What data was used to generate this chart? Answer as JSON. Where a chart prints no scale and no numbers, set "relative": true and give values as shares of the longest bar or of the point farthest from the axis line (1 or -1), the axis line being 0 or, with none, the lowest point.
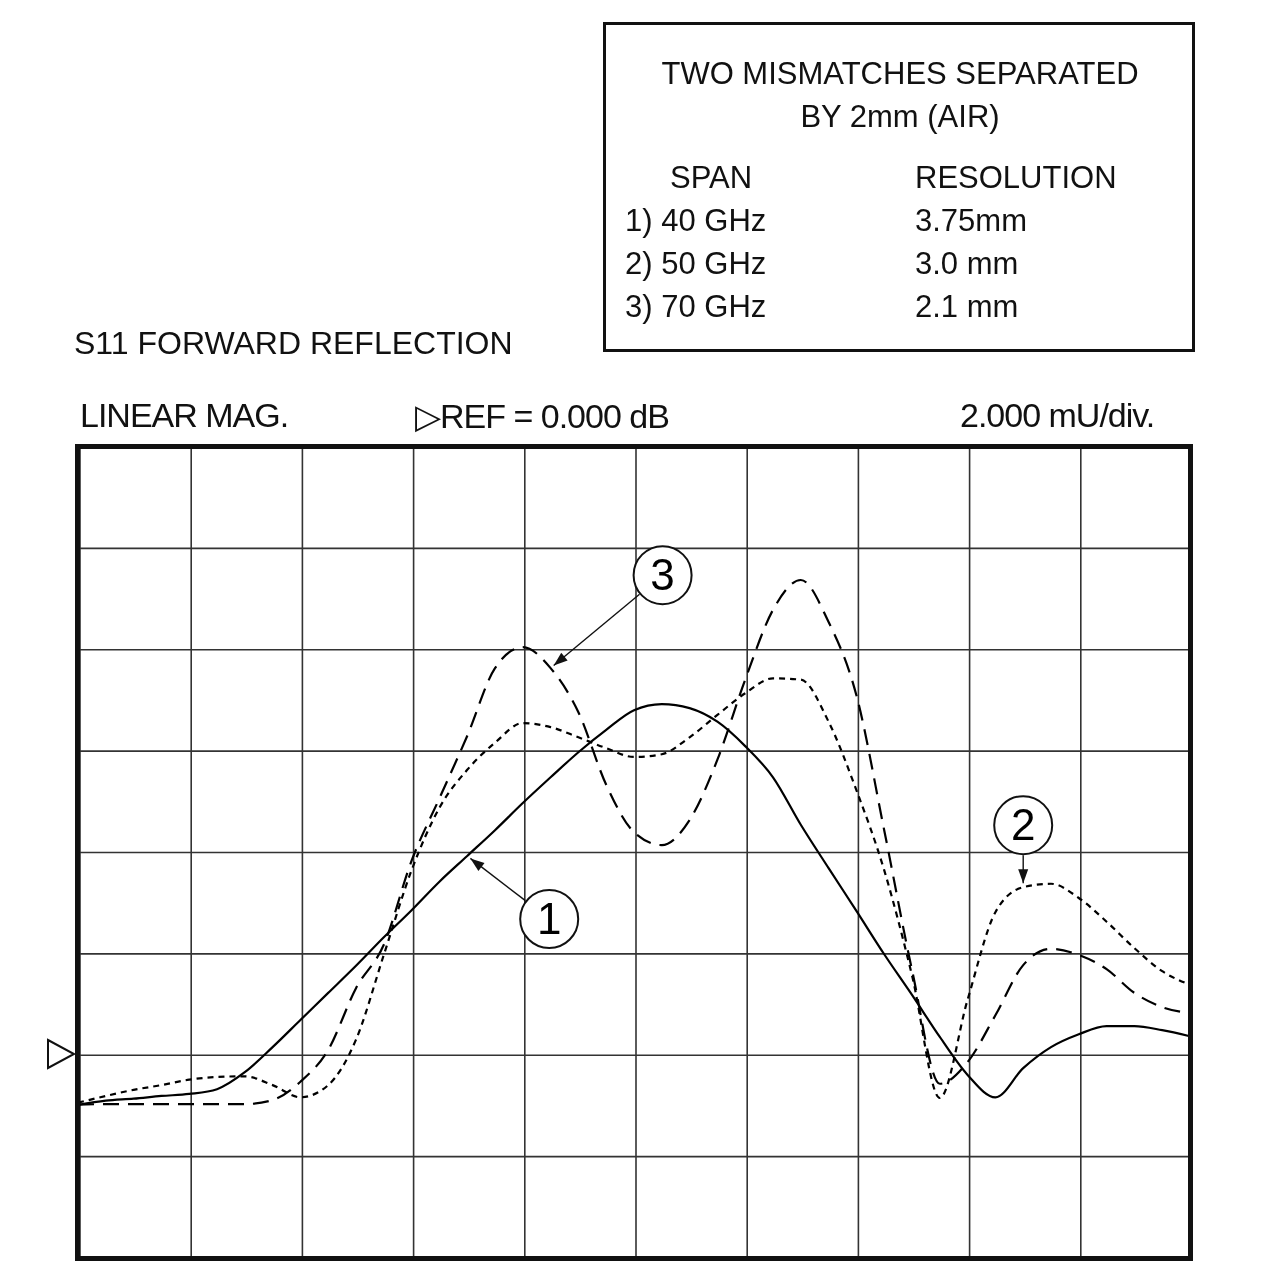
{
  "chart_data": {
    "type": "line",
    "title": "S11 FORWARD REFLECTION",
    "relative": true,
    "grid": true,
    "tick_labels": false,
    "marker": "none",
    "categories": [
      null,
      null,
      null,
      null,
      null,
      null,
      null,
      null,
      null,
      null,
      null,
      null,
      null,
      null,
      null,
      null,
      null,
      null,
      null,
      null,
      null,
      null,
      null,
      null,
      null,
      null,
      null,
      null,
      null,
      null,
      null,
      null,
      null,
      null,
      null,
      null,
      null,
      null,
      null,
      null,
      null
    ],
    "series": [
      {
        "name": "1",
        "color": "#000000",
        "line_style": "solid",
        "values": [
          0.226,
          0.232,
          0.235,
          0.239,
          0.242,
          0.249,
          0.274,
          0.311,
          0.351,
          0.391,
          0.431,
          0.473,
          0.513,
          0.555,
          0.593,
          0.631,
          0.671,
          0.709,
          0.746,
          0.779,
          0.808,
          0.817,
          0.811,
          0.791,
          0.755,
          0.709,
          0.639,
          0.575,
          0.512,
          0.448,
          0.388,
          0.326,
          0.27,
          0.237,
          0.28,
          0.311,
          0.33,
          0.342,
          0.342,
          0.336,
          0.327
        ]
      },
      {
        "name": "2",
        "color": "#000000",
        "line_style": "dotted",
        "values": [
          0.229,
          0.239,
          0.248,
          0.255,
          0.263,
          0.267,
          0.268,
          0.255,
          0.237,
          0.255,
          0.322,
          0.447,
          0.572,
          0.664,
          0.72,
          0.76,
          0.789,
          0.783,
          0.768,
          0.752,
          0.739,
          0.743,
          0.768,
          0.801,
          0.833,
          0.855,
          0.853,
          0.791,
          0.69,
          0.572,
          0.417,
          0.236,
          0.381,
          0.51,
          0.547,
          0.552,
          0.531,
          0.496,
          0.457,
          0.423,
          0.403
        ]
      },
      {
        "name": "3",
        "color": "#000000",
        "line_style": "dashed",
        "values": [
          0.226,
          0.227,
          0.227,
          0.227,
          0.227,
          0.227,
          0.227,
          0.233,
          0.26,
          0.307,
          0.398,
          0.462,
          0.586,
          0.678,
          0.77,
          0.87,
          0.901,
          0.87,
          0.805,
          0.698,
          0.628,
          0.609,
          0.646,
          0.735,
          0.853,
          0.956,
          1.0,
          0.938,
          0.83,
          0.631,
          0.425,
          0.257,
          0.289,
          0.358,
          0.432,
          0.456,
          0.447,
          0.426,
          0.391,
          0.37,
          0.361
        ]
      }
    ],
    "annotations": [
      "TWO MISMATCHES SEPARATED BY 2mm (AIR)",
      "SPAN",
      "RESOLUTION",
      "1) 40 GHz",
      "3.75mm",
      "2) 50 GHz",
      "3.0 mm",
      "3) 70 GHz",
      "2.1 mm",
      "LINEAR MAG.",
      "▷REF = 0.000 dB",
      "2.000 mU/div."
    ]
  }
}
